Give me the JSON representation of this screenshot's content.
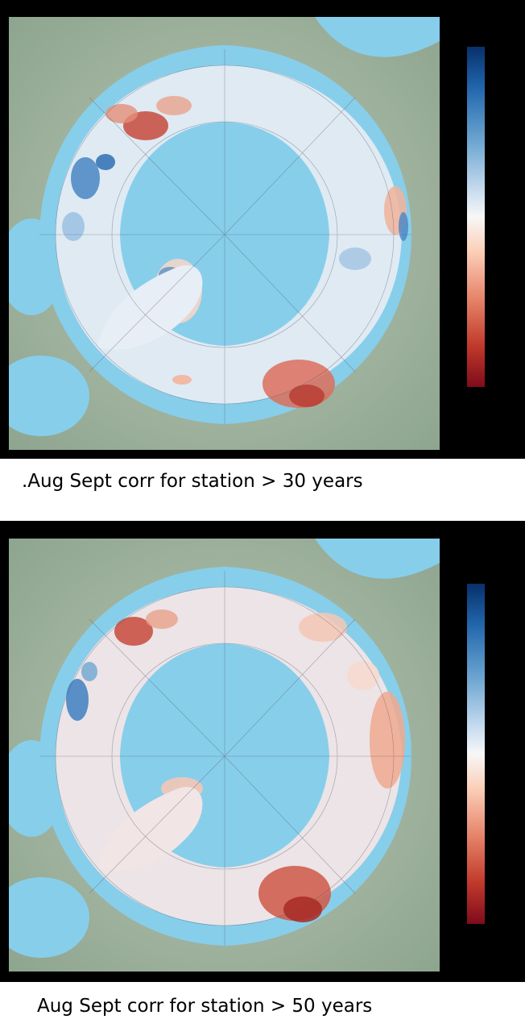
{
  "panels": [
    {
      "caption": ".Aug Sept corr for station > 30 years"
    },
    {
      "caption": "Aug Sept corr for station > 50 years"
    }
  ],
  "colors": {
    "frame": "#000000",
    "ocean": "#87ceeb",
    "land": "#9fb3a2",
    "colormap": "blue-white-red (RdBu)",
    "colormap_high": "#08306b",
    "colormap_mid": "#f7f7f7",
    "colormap_low": "#7f0b1c"
  },
  "map": {
    "projection": "north polar stereographic",
    "gridlines": true
  }
}
